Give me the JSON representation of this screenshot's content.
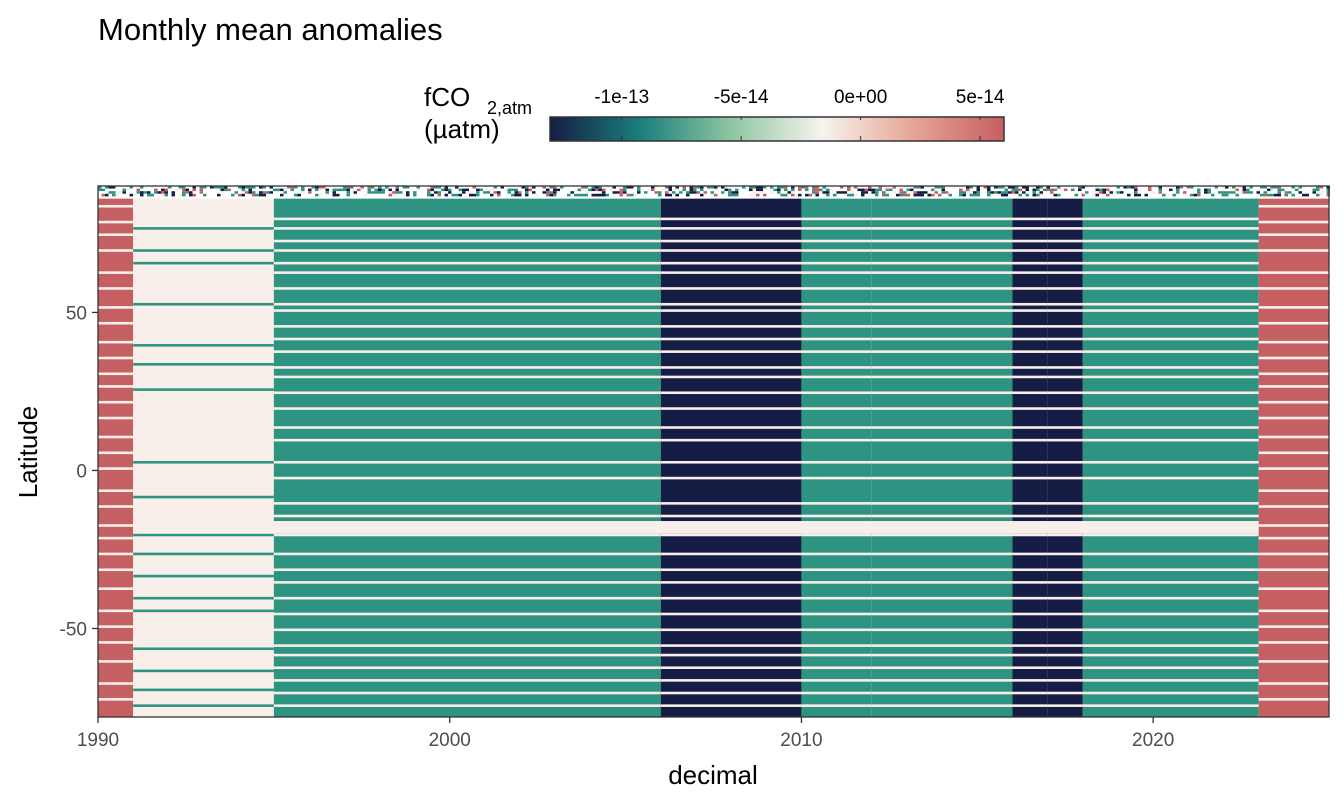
{
  "chart_data": {
    "type": "heatmap",
    "title": "Monthly mean anomalies",
    "xlabel": "decimal",
    "ylabel": "Latitude",
    "xlim": [
      1990,
      2025
    ],
    "ylim": [
      -78,
      90
    ],
    "x_ticks": [
      {
        "value": 1990,
        "label": "1990"
      },
      {
        "value": 2000,
        "label": "2000"
      },
      {
        "value": 2010,
        "label": "2010"
      },
      {
        "value": 2020,
        "label": "2020"
      }
    ],
    "y_ticks": [
      {
        "value": 50,
        "label": "50"
      },
      {
        "value": 0,
        "label": "0"
      },
      {
        "value": -50,
        "label": "-50"
      }
    ],
    "legend": {
      "title_main": "fCO",
      "title_sub": "2,atm",
      "title_line2": "(µatm)",
      "position": "top",
      "range": [
        -1.3e-13,
        6e-14
      ],
      "ticks": [
        {
          "value": -1e-13,
          "label": "-1e-13"
        },
        {
          "value": -5e-14,
          "label": "-5e-14"
        },
        {
          "value": 0,
          "label": "0e+00"
        },
        {
          "value": 5e-14,
          "label": "5e-14"
        }
      ],
      "colors": [
        "#161d45",
        "#1b7f7c",
        "#8fc6a2",
        "#f7f3ee",
        "#e6a595",
        "#c65f62"
      ]
    },
    "colors": {
      "navy": "#161d45",
      "teal": "#2e9380",
      "cream": "#f8eeea",
      "red": "#c65f62"
    },
    "time_blocks": [
      {
        "start": 1990.0,
        "end": 1991.0,
        "value": 6e-14
      },
      {
        "start": 1991.0,
        "end": 1995.0,
        "value": 0
      },
      {
        "start": 1995.0,
        "end": 2006.0,
        "value": -7e-14
      },
      {
        "start": 2006.0,
        "end": 2010.0,
        "value": -1.3e-13
      },
      {
        "start": 2010.0,
        "end": 2012.0,
        "value": -7e-14
      },
      {
        "start": 2012.0,
        "end": 2016.0,
        "value": -7e-14
      },
      {
        "start": 2016.0,
        "end": 2017.0,
        "value": -1.3e-13
      },
      {
        "start": 2017.0,
        "end": 2018.0,
        "value": -1.3e-13
      },
      {
        "start": 2018.0,
        "end": 2023.0,
        "value": -7e-14
      },
      {
        "start": 2023.0,
        "end": 2025.0,
        "value": 6e-14
      }
    ]
  }
}
